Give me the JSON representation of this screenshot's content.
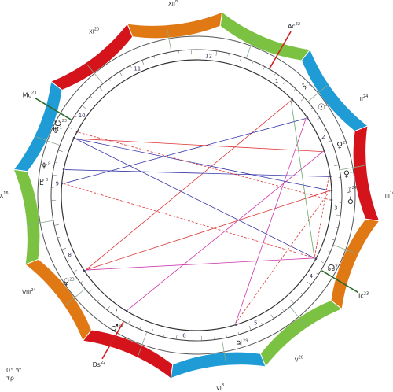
{
  "zodiac": {
    "signs": [
      {
        "key": "aries",
        "glyph": "♈",
        "color": "#d4131b"
      },
      {
        "key": "taurus",
        "glyph": "♉",
        "color": "#e07814"
      },
      {
        "key": "gemini",
        "glyph": "♊",
        "color": "#7cc242"
      },
      {
        "key": "cancer",
        "glyph": "♋",
        "color": "#1f9bd6"
      },
      {
        "key": "leo",
        "glyph": "♌",
        "color": "#d4131b"
      },
      {
        "key": "virgo",
        "glyph": "♍",
        "color": "#e07814"
      },
      {
        "key": "libra",
        "glyph": "♎",
        "color": "#7cc242"
      },
      {
        "key": "scorpio",
        "glyph": "♏",
        "color": "#1f9bd6"
      },
      {
        "key": "sagittarius",
        "glyph": "♐",
        "color": "#d4131b"
      },
      {
        "key": "capricorn",
        "glyph": "♑",
        "color": "#e07814"
      },
      {
        "key": "aquarius",
        "glyph": "♒",
        "color": "#7cc242"
      },
      {
        "key": "pisces",
        "glyph": "♓",
        "color": "#1f9bd6"
      }
    ]
  },
  "houses": [
    {
      "num": "1",
      "deg": 192
    },
    {
      "num": "2",
      "deg": 222
    },
    {
      "num": "3",
      "deg": 252
    },
    {
      "num": "4",
      "deg": 282
    },
    {
      "num": "5",
      "deg": 312
    },
    {
      "num": "6",
      "deg": 342
    },
    {
      "num": "7",
      "deg": 12
    },
    {
      "num": "8",
      "deg": 42
    },
    {
      "num": "9",
      "deg": 72
    },
    {
      "num": "10",
      "deg": 102
    },
    {
      "num": "11",
      "deg": 132
    },
    {
      "num": "12",
      "deg": 162
    }
  ],
  "axes": [
    {
      "name": "Ac",
      "deg": "22",
      "lon": 202,
      "color": "#d42020"
    },
    {
      "name": "Ds",
      "deg": "22",
      "lon": 22,
      "color": "#d42020"
    },
    {
      "name": "Mc",
      "deg": "23",
      "lon": 113,
      "color": "#2a6a2a"
    },
    {
      "name": "Ic",
      "deg": "23",
      "lon": 293,
      "color": "#2a6a2a"
    }
  ],
  "cusp_labels": [
    {
      "num": "II",
      "deg": "24",
      "lon": 232
    },
    {
      "num": "III",
      "deg": "16",
      "lon": 262
    },
    {
      "num": "V",
      "deg": "20",
      "lon": 320
    },
    {
      "num": "VI",
      "deg": "8",
      "lon": 345
    },
    {
      "num": "VIII",
      "deg": "24",
      "lon": 52
    },
    {
      "num": "IX",
      "deg": "16",
      "lon": 82
    },
    {
      "num": "XI",
      "deg": "20",
      "lon": 140
    },
    {
      "num": "XII",
      "deg": "8",
      "lon": 165
    }
  ],
  "planets": [
    {
      "glyph": "♄",
      "deg": "7",
      "lon": 217
    },
    {
      "glyph": "☉",
      "deg": "3",
      "lon": 227
    },
    {
      "glyph": "♀",
      "deg": "23",
      "lon": 243
    },
    {
      "glyph": "♀",
      "deg": "11",
      "lon": 254
    },
    {
      "glyph": "☽",
      "deg": "24",
      "lon": 260
    },
    {
      "glyph": "☋",
      "deg": "23",
      "lon": 110
    },
    {
      "glyph": "♅",
      "deg": "1",
      "lon": 107
    },
    {
      "glyph": "♆",
      "deg": "8",
      "lon": 93
    },
    {
      "glyph": "♇",
      "deg": "8",
      "lon": 87
    },
    {
      "glyph": "♀",
      "deg": "23",
      "lon": 48
    },
    {
      "glyph": "♂",
      "deg": "22",
      "lon": 23
    },
    {
      "glyph": "♃",
      "deg": "29",
      "lon": 335
    },
    {
      "glyph": "☊",
      "deg": "9",
      "lon": 290
    },
    {
      "glyph": "♁",
      "deg": "",
      "lon": 264
    }
  ],
  "corner": {
    "line1": "0° ♈",
    "line2": "τρ"
  }
}
